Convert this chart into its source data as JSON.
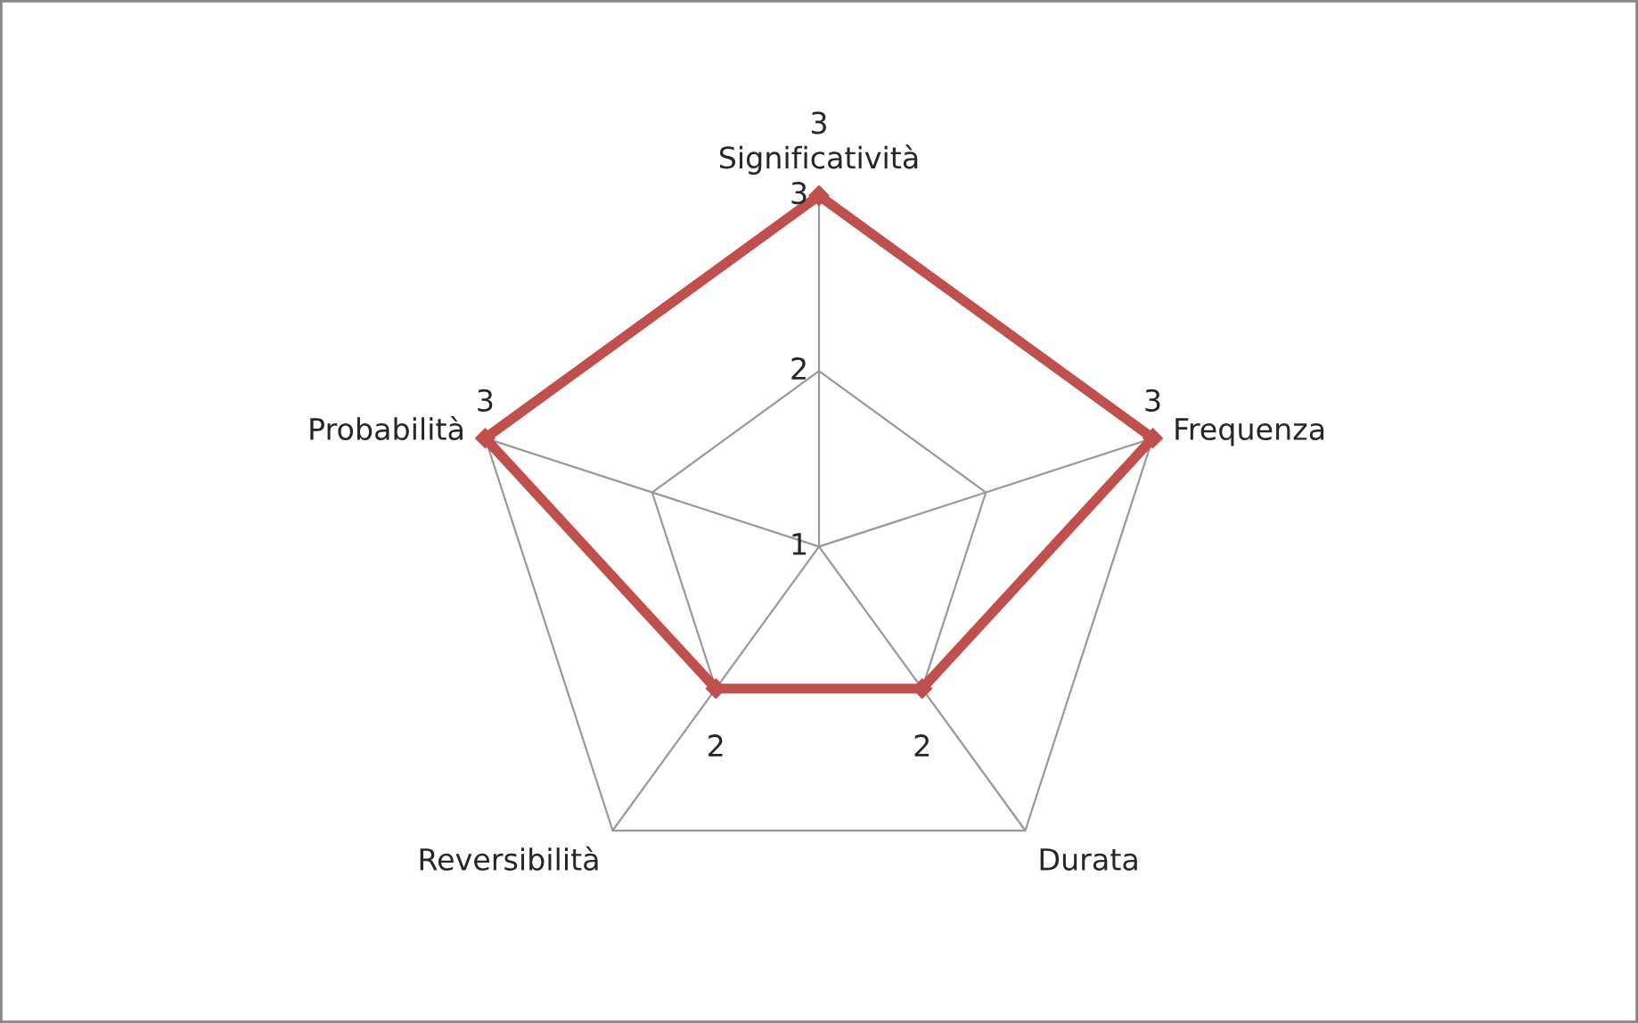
{
  "chart_data": {
    "type": "radar",
    "categories": [
      "Significatività",
      "Frequenza",
      "Durata",
      "Reversibilità",
      "Probabilità"
    ],
    "series": [
      {
        "color": "#c0504d",
        "values": [
          3,
          3,
          2,
          2,
          3
        ]
      }
    ],
    "ylim": [
      1,
      3
    ],
    "yticks": [
      1,
      2,
      3
    ],
    "grid": true,
    "data_labels": true,
    "marker": "diamond",
    "legend": false
  }
}
